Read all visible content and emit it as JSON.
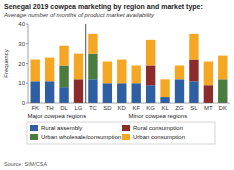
{
  "chart_data": {
    "type": "bar",
    "stacked": true,
    "title": "Senegal 2019 cowpea marketing by region and market type:",
    "subtitle": "Average number of months of product market availability",
    "ylabel": "Frequency",
    "source": "Source: SIM/CSA",
    "categories": [
      "FK",
      "TH",
      "DL",
      "LG",
      "TC",
      "SD",
      "KD",
      "KF",
      "KG",
      "KL",
      "ZG",
      "SL",
      "MT",
      "DK"
    ],
    "groups": [
      {
        "label": "Major cowpea regions",
        "count": 4
      },
      {
        "label": "Minor cowpea regions",
        "count": 10
      }
    ],
    "series": [
      {
        "name": "Rural assembly",
        "color": "#2e5fa3",
        "values": [
          11,
          11,
          8,
          0,
          12,
          10,
          10,
          10,
          9,
          3,
          12,
          11,
          0,
          0
        ]
      },
      {
        "name": "Rural consumption",
        "color": "#8b2b2b",
        "values": [
          0,
          0,
          0,
          12,
          0,
          0,
          0,
          0,
          10,
          0,
          0,
          11,
          9,
          0
        ]
      },
      {
        "name": "Urban wholesale/consumption",
        "color": "#4a7c3f",
        "values": [
          0,
          0,
          11,
          0,
          13,
          0,
          0,
          0,
          0,
          0,
          0,
          0,
          0,
          12
        ]
      },
      {
        "name": "Urban consumption",
        "color": "#f5a623",
        "values": [
          11,
          12,
          10,
          13,
          10,
          11,
          12,
          9,
          13,
          9,
          7,
          13,
          12,
          12
        ]
      }
    ],
    "ylim": [
      0,
      40
    ],
    "yticks": [
      0,
      10,
      20,
      30,
      40
    ],
    "grid": false,
    "legend": "bottom"
  }
}
